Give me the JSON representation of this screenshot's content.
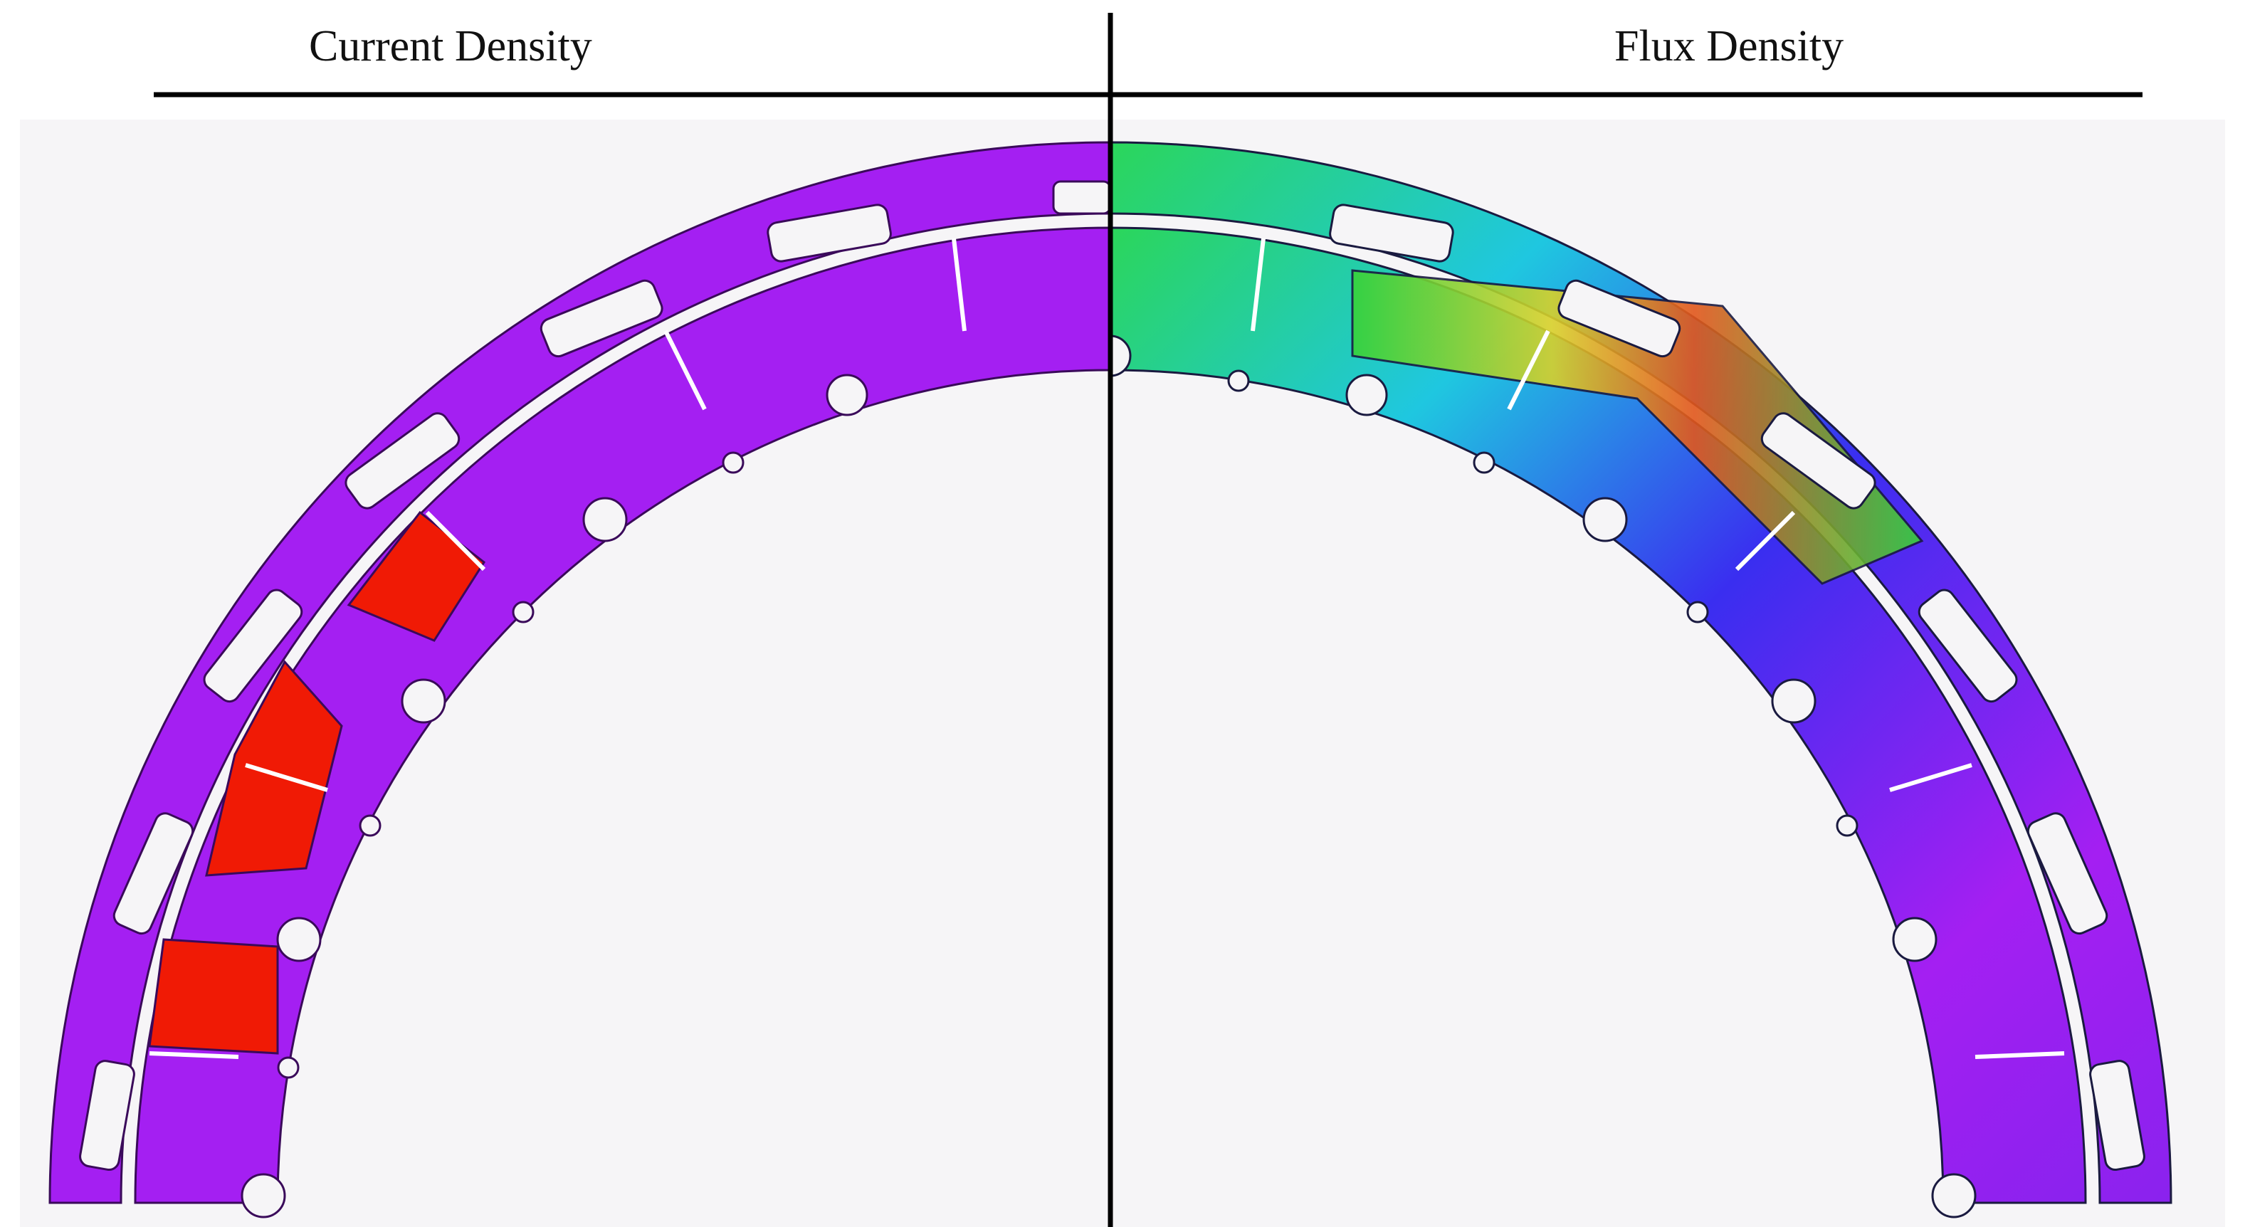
{
  "header": {
    "left_title": "Current Density",
    "right_title": "Flux Density"
  },
  "colors": {
    "background_panel": "#f6f5f7",
    "base_field": "#a41ff2",
    "current_hot": "#f01a05",
    "flux_low": "#3a2ef0",
    "flux_mid_cyan": "#1fc7e0",
    "flux_mid_green": "#36d23a",
    "flux_high_yellow": "#d9d12a",
    "flux_peak": "#e2571c",
    "divider": "#000000"
  }
}
